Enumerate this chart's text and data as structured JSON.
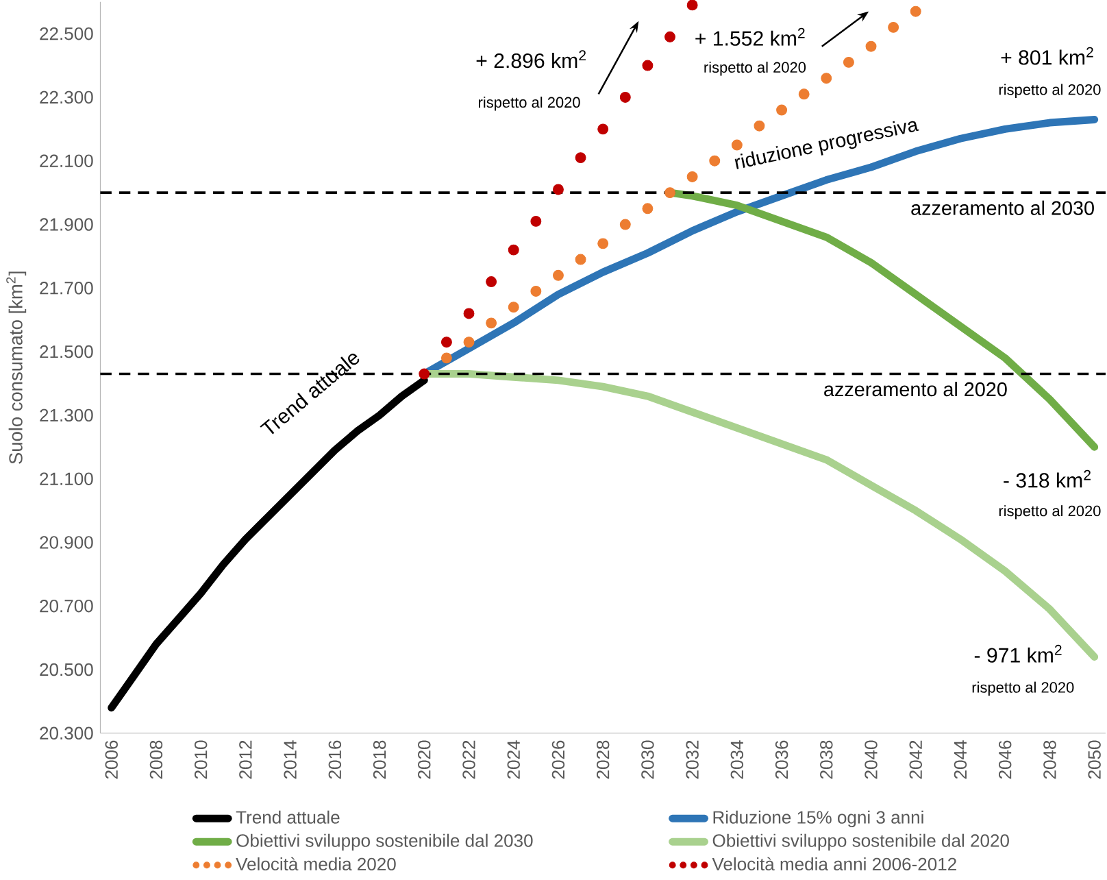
{
  "chart_data": {
    "type": "line",
    "ylabel": "Suolo consumato [km$^{2}$]",
    "xlim": [
      2005.5,
      2050.5
    ],
    "ylim": [
      20300,
      22600
    ],
    "xticks": [
      2006,
      2008,
      2010,
      2012,
      2014,
      2016,
      2018,
      2020,
      2022,
      2024,
      2026,
      2028,
      2030,
      2032,
      2034,
      2036,
      2038,
      2040,
      2042,
      2044,
      2046,
      2048,
      2050
    ],
    "yticks": [
      {
        "value": 20300,
        "label": "20.300"
      },
      {
        "value": 20500,
        "label": "20.500"
      },
      {
        "value": 20700,
        "label": "20.700"
      },
      {
        "value": 20900,
        "label": "20.900"
      },
      {
        "value": 21100,
        "label": "21.100"
      },
      {
        "value": 21300,
        "label": "21.300"
      },
      {
        "value": 21500,
        "label": "21.500"
      },
      {
        "value": 21700,
        "label": "21.700"
      },
      {
        "value": 21900,
        "label": "21.900"
      },
      {
        "value": 22100,
        "label": "22.100"
      },
      {
        "value": 22300,
        "label": "22.300"
      },
      {
        "value": 22500,
        "label": "22.500"
      }
    ],
    "legend": "bottom",
    "series": [
      {
        "name": "Trend attuale",
        "color": "#000000",
        "x": [
          2006,
          2007,
          2008,
          2009,
          2010,
          2011,
          2012,
          2013,
          2014,
          2015,
          2016,
          2017,
          2018,
          2019,
          2020
        ],
        "values": [
          20380,
          20480,
          20580,
          20660,
          20740,
          20830,
          20910,
          20980,
          21050,
          21120,
          21190,
          21250,
          21300,
          21360,
          21410
        ]
      },
      {
        "name": "Riduzione 15% ogni 3 anni",
        "color": "#2e75b6",
        "x": [
          2020,
          2022,
          2024,
          2026,
          2028,
          2030,
          2032,
          2034,
          2036,
          2038,
          2040,
          2042,
          2044,
          2046,
          2048,
          2050
        ],
        "values": [
          21430,
          21510,
          21590,
          21680,
          21750,
          21810,
          21880,
          21940,
          21990,
          22040,
          22080,
          22130,
          22170,
          22200,
          22220,
          22230
        ]
      },
      {
        "name": "Obiettivi sviluppo sostenibile dal 2030",
        "color": "#70ad47",
        "x": [
          2031,
          2032,
          2034,
          2036,
          2038,
          2040,
          2042,
          2044,
          2046,
          2048,
          2050
        ],
        "values": [
          22000,
          21990,
          21960,
          21910,
          21860,
          21780,
          21680,
          21580,
          21480,
          21350,
          21200
        ]
      },
      {
        "name": "Obiettivi sviluppo sostenibile dal 2020",
        "color": "#a9d18e",
        "x": [
          2020,
          2022,
          2024,
          2026,
          2028,
          2030,
          2032,
          2034,
          2036,
          2038,
          2040,
          2042,
          2044,
          2046,
          2048,
          2050
        ],
        "values": [
          21430,
          21430,
          21420,
          21410,
          21390,
          21360,
          21310,
          21260,
          21210,
          21160,
          21080,
          21000,
          20910,
          20810,
          20690,
          20540
        ]
      },
      {
        "name": "Velocità media 2020",
        "type": "scatter",
        "marker": "circle",
        "color": "#ed7d31",
        "x": [
          2021,
          2022,
          2023,
          2024,
          2025,
          2026,
          2027,
          2028,
          2029,
          2030,
          2031,
          2032,
          2033,
          2034,
          2035,
          2036,
          2037,
          2038,
          2039,
          2040,
          2041,
          2042
        ],
        "values": [
          21480,
          21530,
          21590,
          21640,
          21690,
          21740,
          21790,
          21840,
          21900,
          21950,
          22000,
          22050,
          22100,
          22150,
          22210,
          22260,
          22310,
          22360,
          22410,
          22460,
          22520,
          22570
        ]
      },
      {
        "name": "Velocità media anni 2006-2012",
        "type": "scatter",
        "marker": "circle",
        "color": "#c00000",
        "x": [
          2020,
          2021,
          2022,
          2023,
          2024,
          2025,
          2026,
          2027,
          2028,
          2029,
          2030,
          2031,
          2032
        ],
        "values": [
          21430,
          21530,
          21620,
          21720,
          21820,
          21910,
          22010,
          22110,
          22200,
          22300,
          22400,
          22490,
          22590
        ]
      }
    ],
    "ref_lines": [
      {
        "axis": "y",
        "value": 22000,
        "label": "azzeramento  al 2030",
        "line_style": "dashed"
      },
      {
        "axis": "y",
        "value": 21430,
        "label": "azzeramento  al 2020",
        "line_style": "dashed"
      }
    ],
    "annotations": [
      "+ 2.896  km$^{2}$",
      "rispetto al 2020",
      "+ 1.552  km$^{2}$",
      "rispetto al 2020",
      "+ 801  km$^{2}$",
      "rispetto al 2020",
      "- 318  km$^{2}$",
      "rispetto al 2020",
      "- 971  km$^{2}$",
      "rispetto al 2020",
      "Trend attuale",
      "riduzione  progressiva"
    ]
  }
}
